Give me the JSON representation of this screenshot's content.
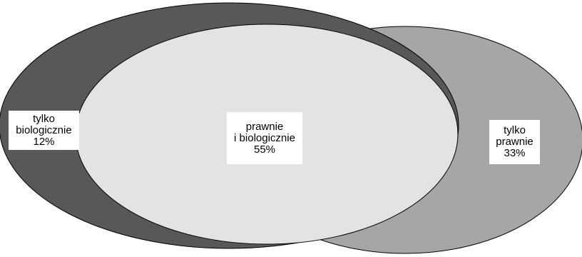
{
  "colors": {
    "background": "#ffffff",
    "only_biological_fill": "#5a5857",
    "only_legal_fill": "#a6a6a6",
    "overlap_fill": "#e3e3e3",
    "outline": "#000000"
  },
  "regions": {
    "only_biological": {
      "line1": "tylko",
      "line2": "biologicznie",
      "percent": "12%",
      "value": 12
    },
    "both": {
      "line1": "prawnie",
      "line2": "i biologicznie",
      "percent": "55%",
      "value": 55
    },
    "only_legal": {
      "line1": "tylko",
      "line2": "prawnie",
      "percent": "33%",
      "value": 33
    }
  }
}
